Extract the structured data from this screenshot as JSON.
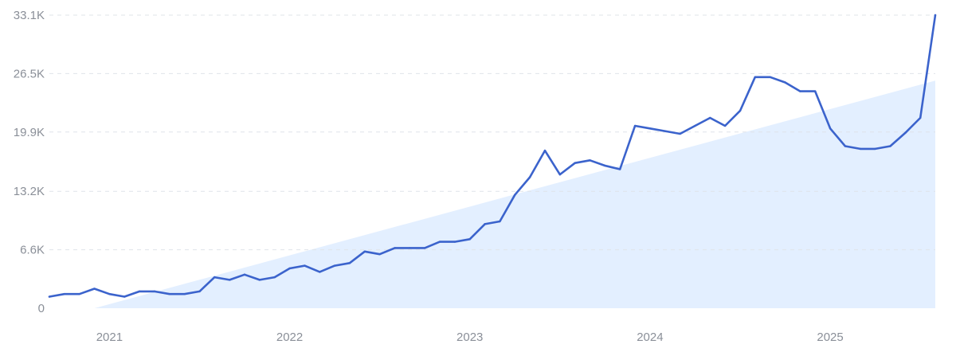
{
  "chart_data": {
    "type": "line",
    "title": "",
    "xlabel": "",
    "ylabel": "",
    "grid": true,
    "legend": "none",
    "xlim": [
      "2020-09",
      "2025-08"
    ],
    "ylim": [
      0,
      33100
    ],
    "y_ticks": [
      {
        "value": 0,
        "label": "0"
      },
      {
        "value": 6600,
        "label": "6.6K"
      },
      {
        "value": 13200,
        "label": "13.2K"
      },
      {
        "value": 19900,
        "label": "19.9K"
      },
      {
        "value": 26500,
        "label": "26.5K"
      },
      {
        "value": 33100,
        "label": "33.1K"
      }
    ],
    "x_ticks": [
      {
        "value": "2021-01",
        "label": "2021"
      },
      {
        "value": "2022-01",
        "label": "2022"
      },
      {
        "value": "2023-01",
        "label": "2023"
      },
      {
        "value": "2024-01",
        "label": "2024"
      },
      {
        "value": "2025-01",
        "label": "2025"
      }
    ],
    "colors": {
      "line": "#3b63cc",
      "trend_fill": "#e3efff",
      "grid": "#dfe4ea",
      "tick_text": "#8a8f98"
    },
    "series": [
      {
        "x": [
          "2020-09",
          "2020-10",
          "2020-11",
          "2020-12",
          "2021-01",
          "2021-02",
          "2021-03",
          "2021-04",
          "2021-05",
          "2021-06",
          "2021-07",
          "2021-08",
          "2021-09",
          "2021-10",
          "2021-11",
          "2021-12",
          "2022-01",
          "2022-02",
          "2022-03",
          "2022-04",
          "2022-05",
          "2022-06",
          "2022-07",
          "2022-08",
          "2022-09",
          "2022-10",
          "2022-11",
          "2022-12",
          "2023-01",
          "2023-02",
          "2023-03",
          "2023-04",
          "2023-05",
          "2023-06",
          "2023-07",
          "2023-08",
          "2023-09",
          "2023-10",
          "2023-11",
          "2023-12",
          "2024-01",
          "2024-02",
          "2024-03",
          "2024-04",
          "2024-05",
          "2024-06",
          "2024-07",
          "2024-08",
          "2024-09",
          "2024-10",
          "2024-11",
          "2024-12",
          "2025-01",
          "2025-02",
          "2025-03",
          "2025-04",
          "2025-05",
          "2025-06",
          "2025-07",
          "2025-08"
        ],
        "values": [
          1300,
          1600,
          1600,
          2200,
          1600,
          1300,
          1900,
          1900,
          1600,
          1600,
          1900,
          3500,
          3200,
          3800,
          3200,
          3500,
          4500,
          4800,
          4100,
          4800,
          5100,
          6400,
          6100,
          6800,
          6800,
          6800,
          7500,
          7500,
          7800,
          9500,
          9800,
          12800,
          14800,
          17800,
          15100,
          16400,
          16700,
          16100,
          15700,
          20600,
          20300,
          20000,
          19700,
          20600,
          21500,
          20600,
          22300,
          26100,
          26100,
          25500,
          24500,
          24500,
          20300,
          18300,
          18000,
          18000,
          18300,
          19800,
          21500,
          33100
        ]
      }
    ],
    "trend": {
      "x": [
        "2020-12",
        "2025-08"
      ],
      "values": [
        0,
        25700
      ]
    }
  }
}
